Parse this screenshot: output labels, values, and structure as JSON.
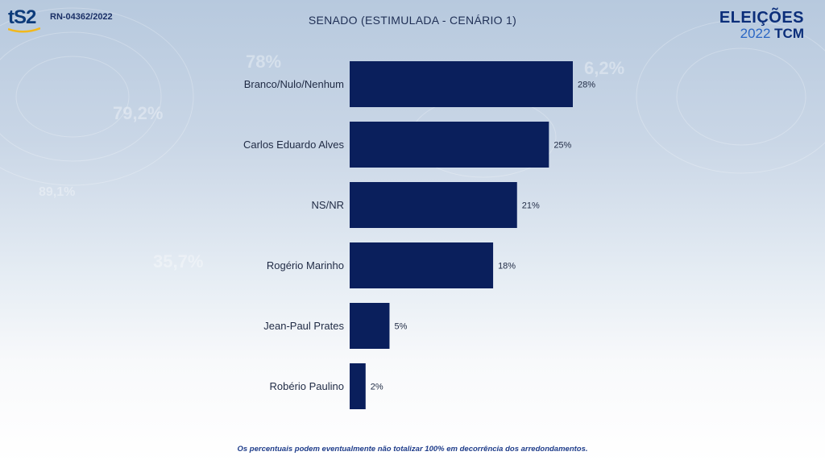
{
  "header": {
    "logo_text": "tS2",
    "register_code": "RN-04362/2022",
    "brand_line1": "ELEIÇÕES",
    "brand_year": "2022",
    "brand_tcm": "TCM"
  },
  "chart_data": {
    "type": "bar",
    "orientation": "horizontal",
    "title": "SENADO (ESTIMULADA - CENÁRIO 1)",
    "categories": [
      "Branco/Nulo/Nenhum",
      "Carlos Eduardo Alves",
      "NS/NR",
      "Rogério Marinho",
      "Jean-Paul Prates",
      "Robério Paulino"
    ],
    "values": [
      28,
      25,
      21,
      18,
      5,
      2
    ],
    "value_labels": [
      "28%",
      "25%",
      "21%",
      "18%",
      "5%",
      "2%"
    ],
    "xlim": [
      0,
      30
    ],
    "grid": false,
    "bar_color": "#0a1f5c"
  },
  "footnote": "Os percentuais podem eventualmente não totalizar 100% em decorrência dos arredondamentos."
}
